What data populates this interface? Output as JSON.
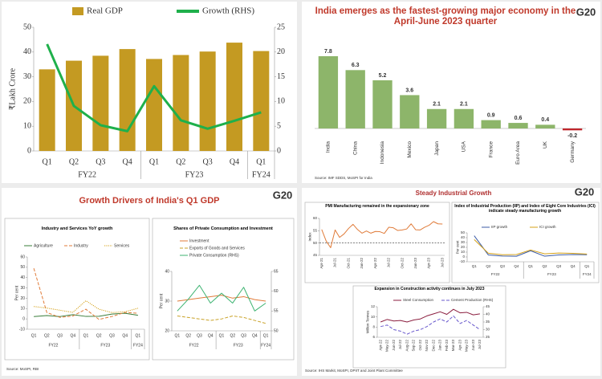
{
  "headings": {
    "drivers": "Growth Drivers of India's Q1 GDP",
    "industrial": "Steady Industrial Growth",
    "logo": "G20",
    "drivers_source": "Source: MoSPI, RBI",
    "industrial_source": "Source: IHS Markit, MoSPI, DPIIT and Joint Plant Committee"
  },
  "chart_data": [
    {
      "type": "combo",
      "categories": [
        "Q1",
        "Q2",
        "Q3",
        "Q4",
        "Q1",
        "Q2",
        "Q3",
        "Q4",
        "Q1"
      ],
      "groups": [
        {
          "label": "FY22",
          "size": 4
        },
        {
          "label": "FY23",
          "size": 4
        },
        {
          "label": "FY24",
          "size": 1
        }
      ],
      "y_label": "₹Lakh Crore",
      "series": [
        {
          "name": "Real GDP",
          "kind": "bar",
          "color": "#c49a22",
          "values": [
            33,
            36.5,
            38.5,
            41.2,
            37.2,
            38.8,
            40.2,
            43.8,
            40.4
          ]
        },
        {
          "name": "Growth (RHS)",
          "kind": "line",
          "color": "#1fb04b",
          "axis": "y2",
          "values": [
            21.6,
            9.1,
            5.2,
            4.0,
            13.1,
            6.2,
            4.5,
            6.1,
            7.8
          ]
        }
      ],
      "ylim": [
        0,
        50
      ],
      "yticks": [
        0,
        10,
        20,
        30,
        40,
        50
      ],
      "y2lim": [
        0,
        25
      ],
      "y2ticks": [
        0,
        5,
        10,
        15,
        20,
        25
      ]
    },
    {
      "type": "bar",
      "title": "India emerges as the fastest-growing major economy in the April-June 2023 quarter",
      "categories": [
        "India",
        "China",
        "Indonesia",
        "Mexico",
        "Japan",
        "USA",
        "France",
        "Euro Area",
        "UK",
        "Germany"
      ],
      "values": [
        7.8,
        6.3,
        5.2,
        3.6,
        2.1,
        2.1,
        0.9,
        0.6,
        0.4,
        -0.2
      ],
      "color": "#8db56a",
      "negative_color": "#c0262c",
      "source": "Source: IMF SDDS, MoSPI for India"
    },
    {
      "type": "line",
      "title": "Industry and Services YoY growth",
      "categories": [
        "Q1",
        "Q2",
        "Q3",
        "Q4",
        "Q1",
        "Q2",
        "Q3",
        "Q4",
        "Q1"
      ],
      "groups": [
        {
          "label": "FY22",
          "size": 4
        },
        {
          "label": "FY23",
          "size": 4
        },
        {
          "label": "FY24",
          "size": 1
        }
      ],
      "y_label": "Per cent",
      "series": [
        {
          "name": "Agriculture",
          "color": "#3a7d3a",
          "style": "solid",
          "values": [
            2.2,
            3.2,
            2.3,
            4.1,
            2.4,
            2.5,
            4.7,
            5.5,
            3.5
          ]
        },
        {
          "name": "Industry",
          "color": "#e07b39",
          "style": "dashed",
          "values": [
            49,
            6.2,
            1.5,
            2.8,
            9.4,
            -0.5,
            2.3,
            6.3,
            5.5
          ]
        },
        {
          "name": "Services",
          "color": "#d4a017",
          "style": "dotted",
          "values": [
            12,
            10.5,
            8.4,
            6.3,
            17.6,
            9.4,
            6.1,
            6.9,
            10.3
          ]
        }
      ],
      "ylim": [
        -10,
        60
      ],
      "yticks": [
        -10,
        0,
        10,
        20,
        30,
        40,
        50,
        60
      ]
    },
    {
      "type": "line",
      "title": "Shares of Private Consumption and Investment",
      "categories": [
        "Q1",
        "Q2",
        "Q3",
        "Q4",
        "Q1",
        "Q2",
        "Q3",
        "Q4",
        "Q1"
      ],
      "groups": [
        {
          "label": "FY22",
          "size": 4
        },
        {
          "label": "FY23",
          "size": 4
        },
        {
          "label": "FY24",
          "size": 1
        }
      ],
      "y_label": "Per cent",
      "series": [
        {
          "name": "Investment",
          "color": "#e07b39",
          "style": "solid",
          "values": [
            30,
            30.5,
            31,
            31.5,
            32,
            31,
            31.5,
            30.5,
            30
          ]
        },
        {
          "name": "Exports of Goods and Services",
          "color": "#c9a227",
          "style": "dashed",
          "values": [
            25,
            24.5,
            24,
            23.5,
            24,
            25,
            24.5,
            23.5,
            22.5
          ]
        },
        {
          "name": "Private Consumption (RHS)",
          "color": "#3cb371",
          "style": "solid",
          "axis": "y2",
          "values": [
            55,
            58,
            61.5,
            57,
            59.5,
            57,
            61,
            55,
            57
          ]
        }
      ],
      "ylim": [
        20,
        40
      ],
      "yticks": [
        20,
        30,
        40
      ],
      "y2lim": [
        50,
        65
      ],
      "y2ticks": [
        50,
        55,
        60,
        65
      ]
    },
    {
      "type": "line",
      "title": "PMI Manufacturing remained in the expansionary zone",
      "categories": [
        "Apr-21",
        null,
        null,
        "Jul-21",
        null,
        null,
        "Oct-21",
        null,
        null,
        "Jan-22",
        null,
        null,
        "Apr-22",
        null,
        null,
        "Jul-22",
        null,
        null,
        "Oct-22",
        null,
        null,
        "Jan-23",
        null,
        null,
        "Apr-23",
        null,
        null,
        "Jul-23"
      ],
      "y_label": "Index",
      "color": "#e07b39",
      "values": [
        55.5,
        50.8,
        48.1,
        55.3,
        52.3,
        53.7,
        55.9,
        57.6,
        55.5,
        54.0,
        54.9,
        54.0,
        54.7,
        54.6,
        53.9,
        56.4,
        56.2,
        55.1,
        55.3,
        55.7,
        57.8,
        55.4,
        55.3,
        56.4,
        57.2,
        58.7,
        57.8,
        57.7
      ],
      "reference_line": 50,
      "ylim": [
        45,
        60
      ],
      "yticks": [
        45,
        50,
        55,
        60
      ]
    },
    {
      "type": "line",
      "title": "Index of Industrial Production (IIP) and Index of Eight Core Industries (ICI) indicate steady manufacturing growth",
      "categories": [
        "Q1",
        "Q2",
        "Q3",
        "Q4",
        "Q1",
        "Q2",
        "Q3",
        "Q4",
        "Q1"
      ],
      "groups": [
        {
          "label": "FY22",
          "size": 4
        },
        {
          "label": "FY23",
          "size": 4
        },
        {
          "label": "FY24",
          "size": 1
        }
      ],
      "y_label": "Per cent",
      "series": [
        {
          "name": "IIP growth",
          "color": "#3b5ba5",
          "style": "solid",
          "values": [
            44,
            4.2,
            1.8,
            1.5,
            12.9,
            1.6,
            4.1,
            5,
            4.5
          ]
        },
        {
          "name": "ICI growth",
          "color": "#d4a017",
          "style": "solid",
          "values": [
            36,
            7.8,
            4.5,
            5,
            14.5,
            6.5,
            8.2,
            7.5,
            6
          ]
        }
      ],
      "ylim": [
        -10,
        50
      ],
      "yticks": [
        -10,
        0,
        10,
        20,
        30,
        40,
        50
      ]
    },
    {
      "type": "line",
      "title": "Expansion in Construction activity continues in July 2023",
      "categories": [
        "Apr-22",
        "May-22",
        "Jun-22",
        "Jul-22",
        "Aug-22",
        "Sep-22",
        "Oct-22",
        "Nov-22",
        "Dec-22",
        "Jan-23",
        "Feb-23",
        "Mar-23",
        "Apr-23",
        "May-23",
        "Jun-23",
        "Jul-23"
      ],
      "y_label": "Million Tonnes",
      "series": [
        {
          "name": "Steel Consumption",
          "color": "#8b1e3f",
          "style": "solid",
          "values": [
            9,
            9.5,
            9.2,
            9.3,
            9,
            9.4,
            9.6,
            10.2,
            10.6,
            11,
            10.5,
            11.5,
            10.8,
            10.9,
            10.4,
            10.6
          ]
        },
        {
          "name": "Cement Production (RHS)",
          "color": "#6a5acd",
          "style": "dashed",
          "axis": "y2",
          "values": [
            32,
            33,
            30,
            29,
            27,
            29,
            30,
            32,
            35,
            37,
            35,
            39,
            34,
            36,
            33,
            30
          ]
        }
      ],
      "ylim": [
        6,
        12
      ],
      "yticks": [
        6,
        8,
        10,
        12
      ],
      "y2lim": [
        25,
        45
      ],
      "y2ticks": [
        25,
        30,
        35,
        40,
        45
      ]
    }
  ]
}
